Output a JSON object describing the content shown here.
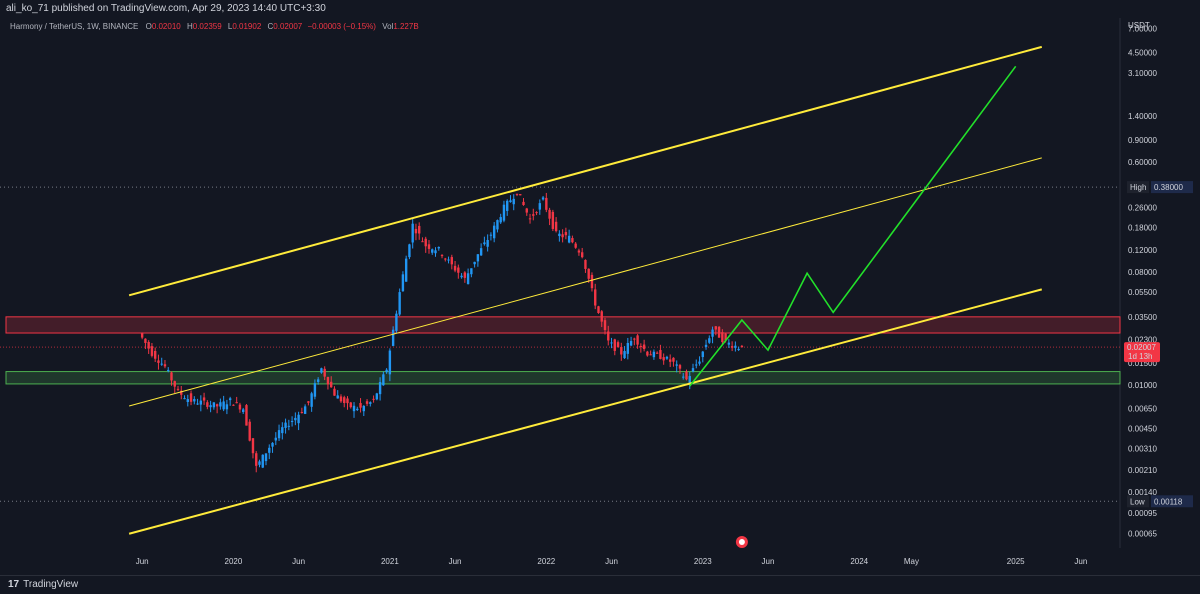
{
  "header": {
    "publisher_text": "ali_ko_71 published on TradingView.com, Apr 29, 2023 14:40 UTC+3:30"
  },
  "legend": {
    "symbol": "Harmony / TetherUS, 1W, BINANCE",
    "open_key": "O",
    "open": "0.02010",
    "high_key": "H",
    "high": "0.02359",
    "low_key": "L",
    "low": "0.01902",
    "close_key": "C",
    "close": "0.02007",
    "change": "−0.00003 (−0.15%)",
    "vol_key": "Vol",
    "vol": "1.227B"
  },
  "footer": {
    "brand": "TradingView",
    "brand_mark": "17"
  },
  "colors": {
    "background": "#131722",
    "up": "#2196f3",
    "down": "#f23645",
    "channel": "#ffeb3b",
    "projection": "#22e02a",
    "resistance_zone": "#f23645",
    "support_zone": "#4caf50"
  },
  "chart_data": {
    "type": "candlestick",
    "currency": "USDT",
    "y_scale": "log",
    "ylim": [
      0.0005,
      8.5
    ],
    "y_ticks": [
      "7.00000",
      "4.50000",
      "3.10000",
      "1.40000",
      "0.90000",
      "0.60000",
      "0.26000",
      "0.18000",
      "0.12000",
      "0.08000",
      "0.05500",
      "0.03500",
      "0.02300",
      "0.01500",
      "0.01000",
      "0.00650",
      "0.00450",
      "0.00310",
      "0.00210",
      "0.00140",
      "0.00095",
      "0.00065"
    ],
    "x_ticks": [
      "Jun",
      "2020",
      "Jun",
      "2021",
      "Jun",
      "2022",
      "Jun",
      "2023",
      "Jun",
      "2024",
      "May",
      "2025",
      "Jun"
    ],
    "high_label": {
      "text": "High",
      "value": "0.38000"
    },
    "low_label": {
      "text": "Low",
      "value": "0.00118"
    },
    "last_price": {
      "value": "0.02007",
      "countdown": "1d 13h"
    },
    "zones": [
      {
        "name": "resistance",
        "from": 0.026,
        "to": 0.035
      },
      {
        "name": "support",
        "from": 0.0102,
        "to": 0.0128
      }
    ],
    "trendlines": [
      {
        "name": "channel-upper",
        "from": [
          "2019-05",
          0.052
        ],
        "to": [
          "2025-03",
          5.0
        ]
      },
      {
        "name": "channel-middle",
        "from": [
          "2019-05",
          0.0068
        ],
        "to": [
          "2025-03",
          0.65
        ]
      },
      {
        "name": "channel-lower",
        "from": [
          "2019-05",
          0.00065
        ],
        "to": [
          "2025-03",
          0.058
        ]
      }
    ],
    "projection": [
      [
        "2022-12",
        0.0098
      ],
      [
        "2023-04",
        0.033
      ],
      [
        "2023-06",
        0.019
      ],
      [
        "2023-09",
        0.078
      ],
      [
        "2023-11",
        0.038
      ],
      [
        "2025-01",
        3.5
      ]
    ],
    "price_path": [
      [
        "2019-06",
        0.026
      ],
      [
        "2019-07",
        0.018
      ],
      [
        "2019-08",
        0.014
      ],
      [
        "2019-09",
        0.0088
      ],
      [
        "2019-10",
        0.0075
      ],
      [
        "2019-11",
        0.0072
      ],
      [
        "2019-12",
        0.0068
      ],
      [
        "2020-01",
        0.0075
      ],
      [
        "2020-02",
        0.0065
      ],
      [
        "2020-03",
        0.0022
      ],
      [
        "2020-04",
        0.0032
      ],
      [
        "2020-05",
        0.0045
      ],
      [
        "2020-06",
        0.0055
      ],
      [
        "2020-07",
        0.0072
      ],
      [
        "2020-08",
        0.0135
      ],
      [
        "2020-09",
        0.0085
      ],
      [
        "2020-10",
        0.0068
      ],
      [
        "2020-11",
        0.0065
      ],
      [
        "2020-12",
        0.0075
      ],
      [
        "2021-01",
        0.0135
      ],
      [
        "2021-02",
        0.055
      ],
      [
        "2021-03",
        0.19
      ],
      [
        "2021-04",
        0.13
      ],
      [
        "2021-05",
        0.12
      ],
      [
        "2021-06",
        0.09
      ],
      [
        "2021-07",
        0.07
      ],
      [
        "2021-08",
        0.11
      ],
      [
        "2021-09",
        0.16
      ],
      [
        "2021-10",
        0.26
      ],
      [
        "2021-11",
        0.35
      ],
      [
        "2021-12",
        0.21
      ],
      [
        "2022-01",
        0.3
      ],
      [
        "2022-02",
        0.16
      ],
      [
        "2022-03",
        0.15
      ],
      [
        "2022-04",
        0.11
      ],
      [
        "2022-05",
        0.045
      ],
      [
        "2022-06",
        0.022
      ],
      [
        "2022-07",
        0.018
      ],
      [
        "2022-08",
        0.024
      ],
      [
        "2022-09",
        0.018
      ],
      [
        "2022-10",
        0.017
      ],
      [
        "2022-11",
        0.015
      ],
      [
        "2022-12",
        0.011
      ],
      [
        "2023-01",
        0.016
      ],
      [
        "2023-02",
        0.028
      ],
      [
        "2023-03",
        0.022
      ],
      [
        "2023-04",
        0.02
      ]
    ]
  }
}
